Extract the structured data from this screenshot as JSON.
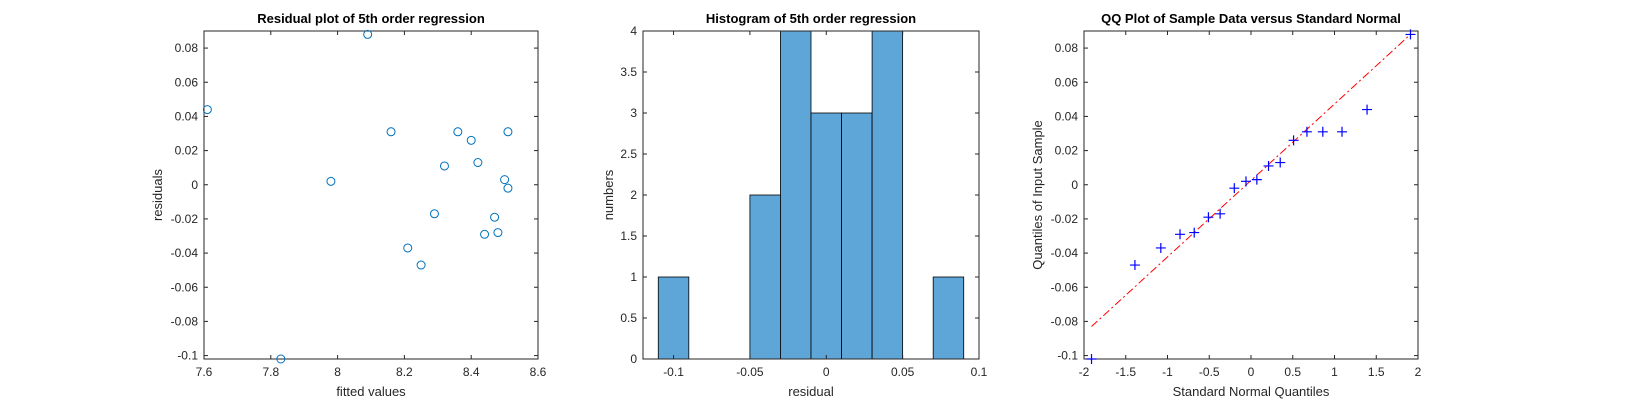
{
  "chart_data": [
    {
      "type": "scatter",
      "title": "Residual plot of 5th order regression",
      "xlabel": "fitted values",
      "ylabel": "residuals",
      "xlim": [
        7.6,
        8.6
      ],
      "ylim": [
        -0.102,
        0.09
      ],
      "xticks": [
        "7.6",
        "7.8",
        "8",
        "8.2",
        "8.4",
        "8.6"
      ],
      "yticks": [
        "-0.1",
        "-0.08",
        "-0.06",
        "-0.04",
        "-0.02",
        "0",
        "0.02",
        "0.04",
        "0.06",
        "0.08"
      ],
      "marker": "circle",
      "color": "#0072BD",
      "points": [
        {
          "x": 7.61,
          "y": 0.044
        },
        {
          "x": 7.83,
          "y": -0.102
        },
        {
          "x": 7.98,
          "y": 0.002
        },
        {
          "x": 8.09,
          "y": 0.088
        },
        {
          "x": 8.16,
          "y": 0.031
        },
        {
          "x": 8.21,
          "y": -0.037
        },
        {
          "x": 8.25,
          "y": -0.047
        },
        {
          "x": 8.29,
          "y": -0.017
        },
        {
          "x": 8.32,
          "y": 0.011
        },
        {
          "x": 8.36,
          "y": 0.031
        },
        {
          "x": 8.4,
          "y": 0.026
        },
        {
          "x": 8.42,
          "y": 0.013
        },
        {
          "x": 8.44,
          "y": -0.029
        },
        {
          "x": 8.47,
          "y": -0.019
        },
        {
          "x": 8.48,
          "y": -0.028
        },
        {
          "x": 8.5,
          "y": 0.003
        },
        {
          "x": 8.51,
          "y": 0.031
        },
        {
          "x": 8.51,
          "y": -0.002
        }
      ]
    },
    {
      "type": "bar",
      "title": "Histogram of 5th order regression",
      "xlabel": "residual",
      "ylabel": "numbers",
      "xlim": [
        -0.12,
        0.1
      ],
      "ylim": [
        0,
        4
      ],
      "xticks": [
        "-0.1",
        "-0.05",
        "0",
        "0.05",
        "0.1"
      ],
      "yticks": [
        "0",
        "0.5",
        "1",
        "1.5",
        "2",
        "2.5",
        "3",
        "3.5",
        "4"
      ],
      "bin_edges": [
        -0.11,
        -0.09,
        -0.07,
        -0.05,
        -0.03,
        -0.01,
        0.01,
        0.03,
        0.05,
        0.07,
        0.09
      ],
      "values": [
        1,
        0,
        0,
        2,
        4,
        3,
        3,
        4,
        0,
        1
      ],
      "color": "#5FA6D8"
    },
    {
      "type": "scatter",
      "title": "QQ Plot of Sample Data versus Standard Normal",
      "xlabel": "Standard Normal Quantiles",
      "ylabel": "Quantiles of Input Sample",
      "xlim": [
        -2,
        2
      ],
      "ylim": [
        -0.102,
        0.09
      ],
      "xticks": [
        "-2",
        "-1.5",
        "-1",
        "-0.5",
        "0",
        "0.5",
        "1",
        "1.5",
        "2"
      ],
      "yticks": [
        "-0.1",
        "-0.08",
        "-0.06",
        "-0.04",
        "-0.02",
        "0",
        "0.02",
        "0.04",
        "0.06",
        "0.08"
      ],
      "marker": "plus",
      "color": "#0000FF",
      "points": [
        {
          "x": -1.91,
          "y": -0.102
        },
        {
          "x": -1.39,
          "y": -0.047
        },
        {
          "x": -1.08,
          "y": -0.037
        },
        {
          "x": -0.85,
          "y": -0.029
        },
        {
          "x": -0.68,
          "y": -0.028
        },
        {
          "x": -0.51,
          "y": -0.019
        },
        {
          "x": -0.37,
          "y": -0.017
        },
        {
          "x": -0.2,
          "y": -0.002
        },
        {
          "x": -0.06,
          "y": 0.002
        },
        {
          "x": 0.07,
          "y": 0.003
        },
        {
          "x": 0.21,
          "y": 0.011
        },
        {
          "x": 0.35,
          "y": 0.013
        },
        {
          "x": 0.51,
          "y": 0.026
        },
        {
          "x": 0.67,
          "y": 0.031
        },
        {
          "x": 0.86,
          "y": 0.031
        },
        {
          "x": 1.09,
          "y": 0.031
        },
        {
          "x": 1.39,
          "y": 0.044
        },
        {
          "x": 1.91,
          "y": 0.088
        }
      ],
      "reference_line": {
        "x": [
          -1.91,
          1.91
        ],
        "y": [
          -0.083,
          0.088
        ],
        "color": "#FF0000",
        "style": "dash-dot"
      }
    }
  ]
}
